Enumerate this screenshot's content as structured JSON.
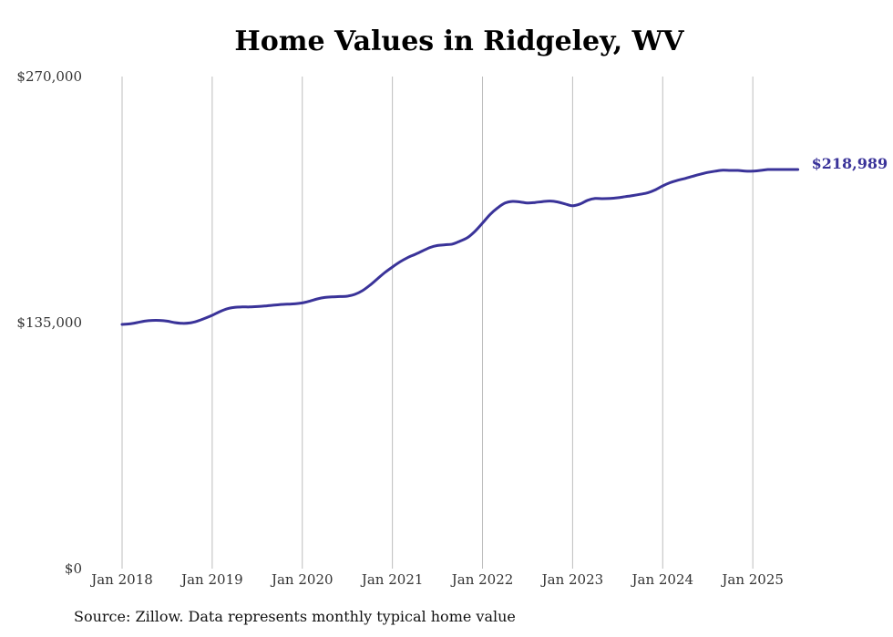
{
  "chart_data": {
    "type": "line",
    "title": "Home Values in Ridgeley, WV",
    "xlabel": "",
    "ylabel": "",
    "ylim": [
      0,
      270000
    ],
    "y_ticks": [
      {
        "value": 0,
        "label": "$0"
      },
      {
        "value": 135000,
        "label": "$135,000"
      },
      {
        "value": 270000,
        "label": "$270,000"
      }
    ],
    "x_ticks": [
      {
        "value": "2018-01",
        "label": "Jan 2018"
      },
      {
        "value": "2019-01",
        "label": "Jan 2019"
      },
      {
        "value": "2020-01",
        "label": "Jan 2020"
      },
      {
        "value": "2021-01",
        "label": "Jan 2021"
      },
      {
        "value": "2022-01",
        "label": "Jan 2022"
      },
      {
        "value": "2023-01",
        "label": "Jan 2023"
      },
      {
        "value": "2024-01",
        "label": "Jan 2024"
      },
      {
        "value": "2025-01",
        "label": "Jan 2025"
      }
    ],
    "grid": "vertical",
    "line_color": "#3a3399",
    "end_label": "$218,989",
    "series": [
      {
        "x": [
          "2018-01",
          "2018-02",
          "2018-03",
          "2018-04",
          "2018-05",
          "2018-06",
          "2018-07",
          "2018-08",
          "2018-09",
          "2018-10",
          "2018-11",
          "2018-12",
          "2019-01",
          "2019-02",
          "2019-03",
          "2019-04",
          "2019-05",
          "2019-06",
          "2019-07",
          "2019-08",
          "2019-09",
          "2019-10",
          "2019-11",
          "2019-12",
          "2020-01",
          "2020-02",
          "2020-03",
          "2020-04",
          "2020-05",
          "2020-06",
          "2020-07",
          "2020-08",
          "2020-09",
          "2020-10",
          "2020-11",
          "2020-12",
          "2021-01",
          "2021-02",
          "2021-03",
          "2021-04",
          "2021-05",
          "2021-06",
          "2021-07",
          "2021-08",
          "2021-09",
          "2021-10",
          "2021-11",
          "2021-12",
          "2022-01",
          "2022-02",
          "2022-03",
          "2022-04",
          "2022-05",
          "2022-06",
          "2022-07",
          "2022-08",
          "2022-09",
          "2022-10",
          "2022-11",
          "2022-12",
          "2023-01",
          "2023-02",
          "2023-03",
          "2023-04",
          "2023-05",
          "2023-06",
          "2023-07",
          "2023-08",
          "2023-09",
          "2023-10",
          "2023-11",
          "2023-12",
          "2024-01",
          "2024-02",
          "2024-03",
          "2024-04",
          "2024-05",
          "2024-06",
          "2024-07",
          "2024-08",
          "2024-09",
          "2024-10",
          "2024-11",
          "2024-12",
          "2025-01",
          "2025-02",
          "2025-03",
          "2025-04",
          "2025-05",
          "2025-06",
          "2025-07"
        ],
        "values": [
          134000,
          134300,
          135000,
          135800,
          136200,
          136200,
          135800,
          135000,
          134600,
          134800,
          135800,
          137300,
          139000,
          141000,
          142600,
          143400,
          143600,
          143600,
          143800,
          144100,
          144500,
          144900,
          145100,
          145300,
          145800,
          146800,
          148000,
          148800,
          149100,
          149300,
          149500,
          150500,
          152500,
          155500,
          159000,
          162500,
          165500,
          168300,
          170600,
          172400,
          174300,
          176200,
          177300,
          177700,
          178100,
          179700,
          181600,
          185100,
          189600,
          194300,
          197900,
          200600,
          201500,
          201200,
          200600,
          200900,
          201400,
          201700,
          201200,
          200100,
          199100,
          200100,
          202100,
          203100,
          203000,
          203100,
          203500,
          204100,
          204700,
          205400,
          206200,
          207800,
          210000,
          211800,
          213100,
          214100,
          215300,
          216400,
          217400,
          218100,
          218600,
          218500,
          218500,
          218100,
          218100,
          218500,
          218989,
          218989,
          218989,
          218989,
          218989
        ]
      }
    ]
  },
  "source_note": "Source: Zillow. Data represents monthly typical home value"
}
